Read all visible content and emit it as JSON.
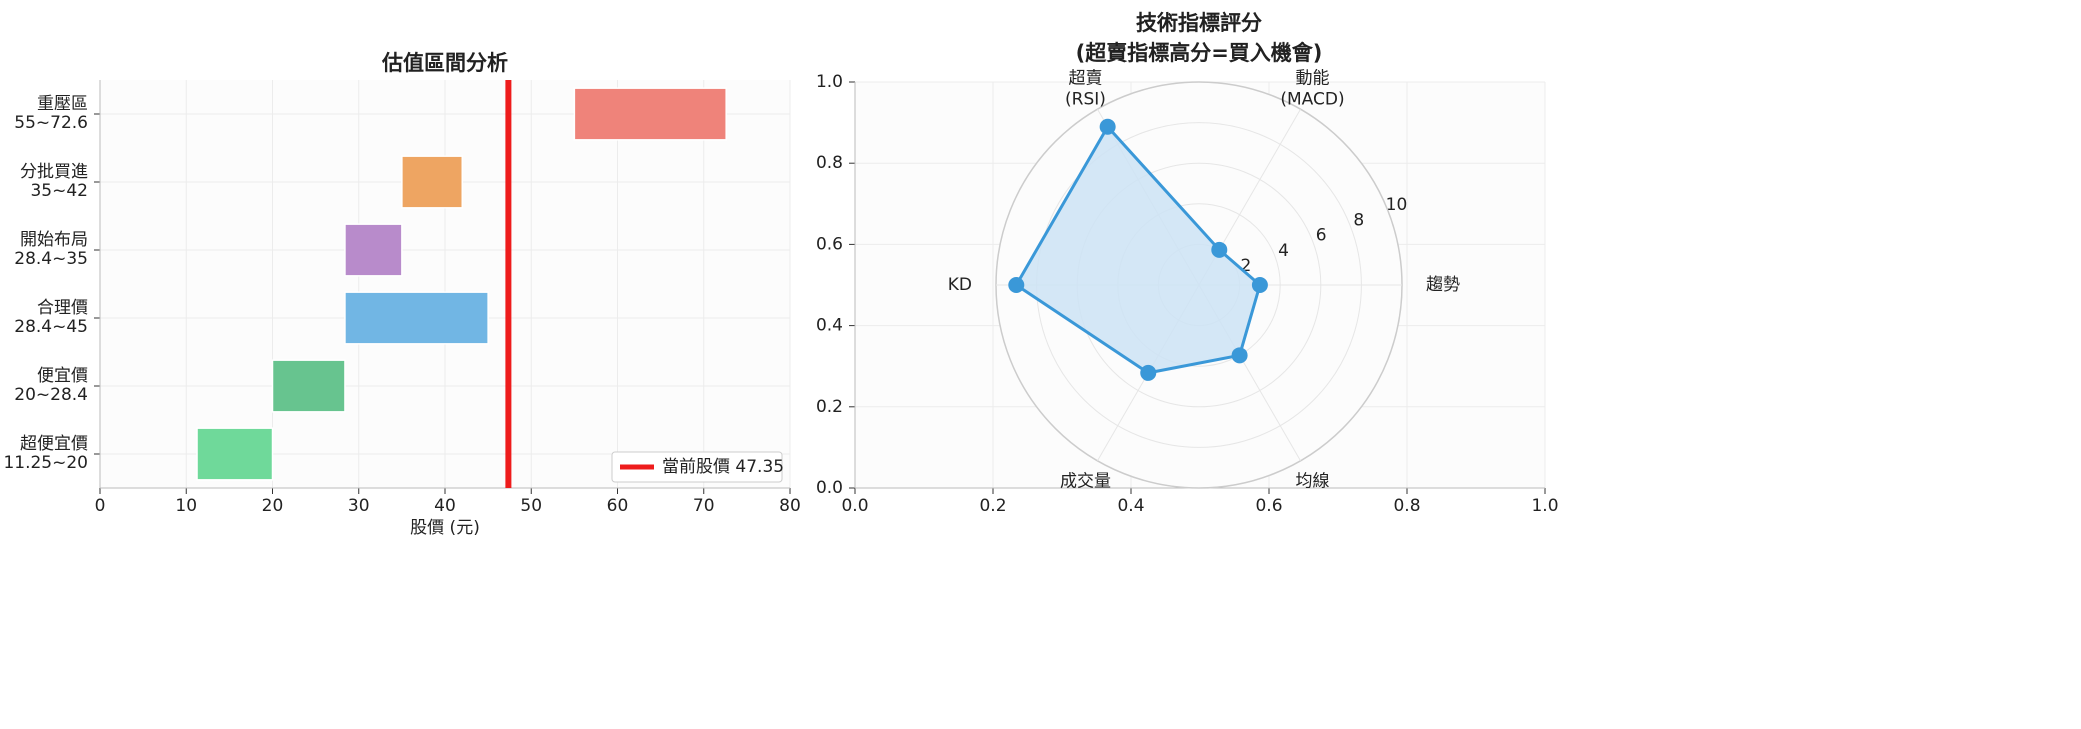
{
  "chart_data": [
    {
      "type": "range-bar",
      "title": "估值區間分析",
      "x_label": "股價 (元)",
      "categories": [
        "超便宜價",
        "便宜價",
        "合理價",
        "開始布局",
        "分批買進",
        "重壓區"
      ],
      "category_ranges": [
        "11.25~20",
        "20~28.4",
        "28.4~45",
        "28.4~35",
        "35~42",
        "55~72.6"
      ],
      "start": [
        11.25,
        20,
        28.4,
        28.4,
        35,
        55
      ],
      "end": [
        20,
        28.4,
        45,
        35,
        42,
        72.6
      ],
      "colors": [
        "#6fd99a",
        "#67c48f",
        "#71b6e4",
        "#b88bcb",
        "#eea562",
        "#ef837a"
      ],
      "reference_line": {
        "name": "當前股價 47.35",
        "value": 47.35,
        "color": "#ee1c1c"
      },
      "legend_loc": "lower right",
      "xlim": [
        0,
        80
      ],
      "xticks": [
        0,
        10,
        20,
        30,
        40,
        50,
        60,
        70,
        80
      ],
      "grid": true
    },
    {
      "type": "radar",
      "title": "技術指標評分",
      "subtitle": "(超賣指標高分=買入機會)",
      "categories": [
        "趨勢",
        "動能\n(MACD)",
        "超賣\n(RSI)",
        "KD",
        "成交量",
        "均線"
      ],
      "values": [
        3,
        2,
        9,
        9,
        5,
        4
      ],
      "color": "#3a98d8",
      "fill_color": "#cde3f4",
      "rlim": [
        0,
        10
      ],
      "rticks": [
        2,
        4,
        6,
        8,
        10
      ],
      "xlim": [
        0,
        1
      ],
      "ylim": [
        0,
        1
      ],
      "xticks": [
        {
          "value": 0,
          "label": "0.0"
        },
        {
          "value": 0.2,
          "label": "0.2"
        },
        {
          "value": 0.4,
          "label": "0.4"
        },
        {
          "value": 0.6,
          "label": "0.6"
        },
        {
          "value": 0.8,
          "label": "0.8"
        },
        {
          "value": 1,
          "label": "1.0"
        }
      ],
      "yticks": [
        {
          "value": 0,
          "label": "0.0"
        },
        {
          "value": 0.2,
          "label": "0.2"
        },
        {
          "value": 0.4,
          "label": "0.4"
        },
        {
          "value": 0.6,
          "label": "0.6"
        },
        {
          "value": 0.8,
          "label": "0.8"
        },
        {
          "value": 1,
          "label": "1.0"
        }
      ],
      "grid": true
    }
  ]
}
